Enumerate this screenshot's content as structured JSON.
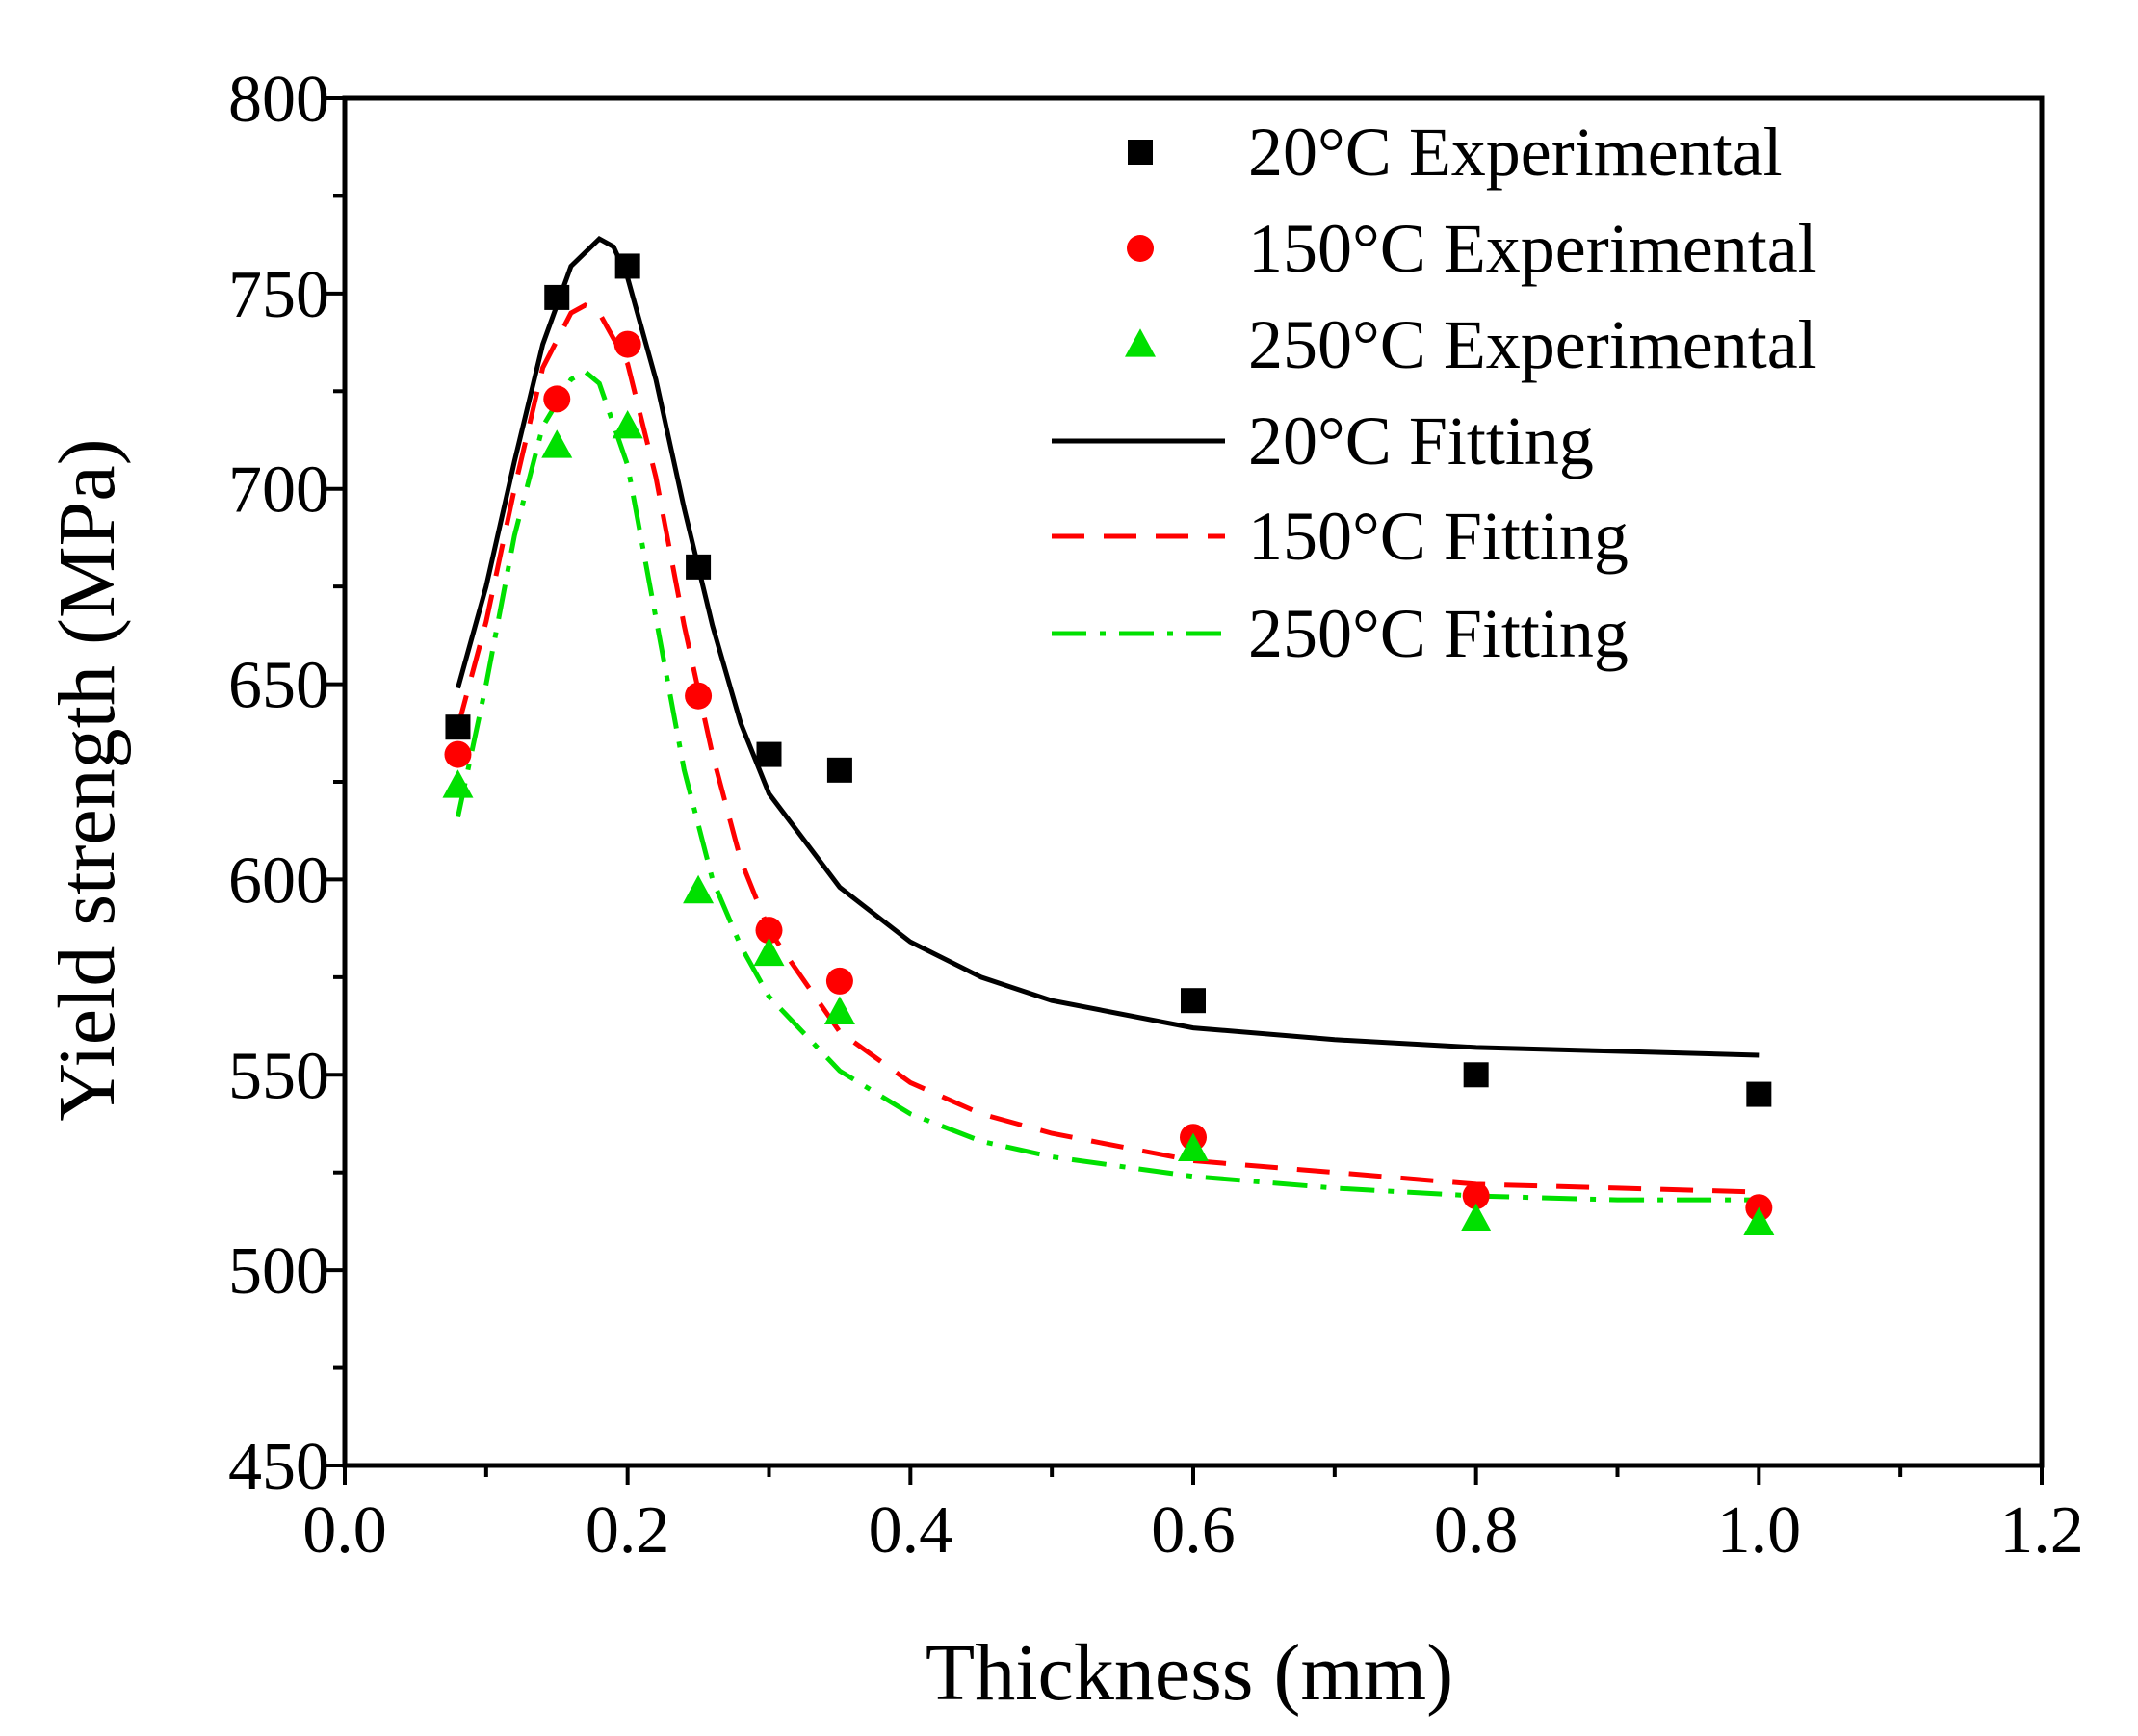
{
  "chart_data": {
    "type": "scatter",
    "title": "",
    "xlabel": "Thickness (mm)",
    "ylabel": "Yield strength (MPa)",
    "xlim": [
      0.0,
      1.2
    ],
    "ylim": [
      450,
      800
    ],
    "xticks": [
      0.0,
      0.2,
      0.4,
      0.6,
      0.8,
      1.0,
      1.2
    ],
    "xtick_labels": [
      "0.0",
      "0.2",
      "0.4",
      "0.6",
      "0.8",
      "1.0",
      "1.2"
    ],
    "yticks": [
      450,
      500,
      550,
      600,
      650,
      700,
      750,
      800
    ],
    "ytick_labels": [
      "450",
      "500",
      "550",
      "600",
      "650",
      "700",
      "750",
      "800"
    ],
    "grid": false,
    "legend_position": "top-right",
    "experimental": [
      {
        "name": "20°C Experimental",
        "marker": "square",
        "color": "#000000",
        "x": [
          0.08,
          0.15,
          0.2,
          0.25,
          0.3,
          0.35,
          0.6,
          0.8,
          1.0
        ],
        "y": [
          639,
          749,
          757,
          680,
          632,
          628,
          569,
          550,
          545
        ]
      },
      {
        "name": "150°C Experimental",
        "marker": "circle",
        "color": "#ff0000",
        "x": [
          0.08,
          0.15,
          0.2,
          0.25,
          0.3,
          0.35,
          0.6,
          0.8,
          1.0
        ],
        "y": [
          632,
          723,
          737,
          647,
          587,
          574,
          534,
          519,
          516
        ]
      },
      {
        "name": "250°C Experimental",
        "marker": "triangle",
        "color": "#00e000",
        "x": [
          0.08,
          0.15,
          0.2,
          0.25,
          0.3,
          0.35,
          0.6,
          0.8,
          1.0
        ],
        "y": [
          624,
          711,
          716,
          597,
          581,
          566,
          531,
          513,
          512
        ]
      }
    ],
    "fitting": [
      {
        "name": "20°C Fitting",
        "style": "solid",
        "color": "#000000",
        "x": [
          0.08,
          0.1,
          0.12,
          0.14,
          0.16,
          0.18,
          0.19,
          0.2,
          0.22,
          0.24,
          0.26,
          0.28,
          0.3,
          0.35,
          0.4,
          0.45,
          0.5,
          0.6,
          0.7,
          0.8,
          0.9,
          1.0
        ],
        "y": [
          649,
          675,
          707,
          737,
          757,
          764,
          762,
          754,
          728,
          695,
          665,
          640,
          622,
          598,
          584,
          575,
          569,
          562,
          559,
          557,
          556,
          555
        ]
      },
      {
        "name": "150°C Fitting",
        "style": "dashed",
        "color": "#ff0000",
        "x": [
          0.08,
          0.1,
          0.12,
          0.14,
          0.16,
          0.17,
          0.18,
          0.2,
          0.22,
          0.24,
          0.26,
          0.28,
          0.3,
          0.35,
          0.4,
          0.45,
          0.5,
          0.6,
          0.7,
          0.8,
          0.9,
          1.0
        ],
        "y": [
          639,
          666,
          700,
          731,
          745,
          747,
          745,
          732,
          703,
          665,
          632,
          605,
          587,
          561,
          548,
          540,
          535,
          528,
          525,
          522,
          521,
          520
        ]
      },
      {
        "name": "250°C Fitting",
        "style": "dashdot",
        "color": "#00e000",
        "x": [
          0.08,
          0.1,
          0.12,
          0.14,
          0.16,
          0.17,
          0.18,
          0.2,
          0.22,
          0.24,
          0.26,
          0.28,
          0.3,
          0.35,
          0.4,
          0.45,
          0.5,
          0.6,
          0.7,
          0.8,
          0.9,
          1.0
        ],
        "y": [
          616,
          650,
          688,
          716,
          728,
          730,
          727,
          706,
          667,
          628,
          600,
          583,
          570,
          551,
          540,
          533,
          529,
          524,
          521,
          519,
          518,
          518
        ]
      }
    ]
  }
}
